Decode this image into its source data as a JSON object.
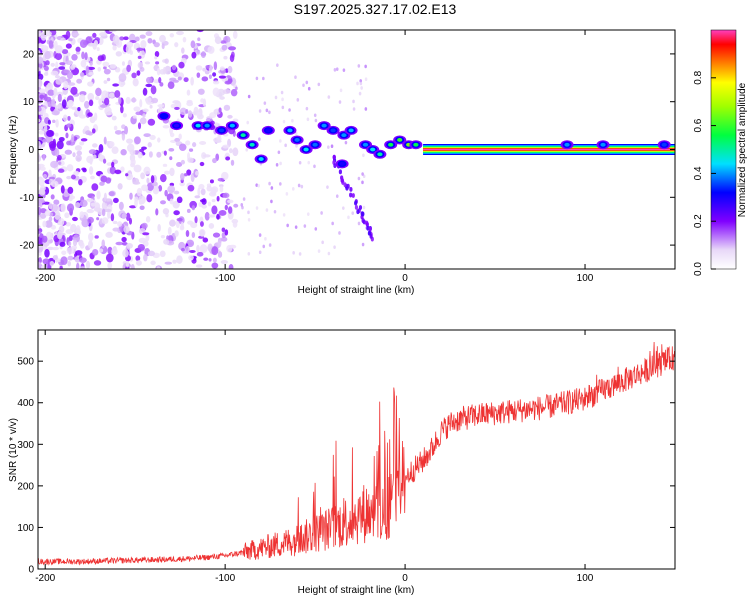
{
  "title": "S197.2025.327.17.02.E13",
  "chart_data": [
    {
      "type": "heatmap",
      "name": "spectrogram",
      "xlabel": "Height of straight line (km)",
      "ylabel": "Frequency (Hz)",
      "xlim": [
        -204,
        150
      ],
      "ylim": [
        -25,
        25
      ],
      "xticks": [
        "-200",
        "-100",
        "0",
        "100"
      ],
      "xtick_values": [
        -200,
        -100,
        0,
        100
      ],
      "yticks": [
        "-20",
        "-10",
        "0",
        "10",
        "20"
      ],
      "ytick_values": [
        -20,
        -10,
        0,
        10,
        20
      ],
      "line_frequency_hz": 0,
      "line_start_km": 10,
      "colorbar": {
        "label": "Normalized spectral amplitude",
        "range": [
          0,
          1
        ],
        "ticks": [
          "0.0",
          "0.2",
          "0.4",
          "0.6",
          "0.8"
        ],
        "tick_values": [
          0,
          0.2,
          0.4,
          0.6,
          0.8
        ]
      },
      "features": [
        {
          "x": -134,
          "y": 7,
          "amp": 0.32
        },
        {
          "x": -127,
          "y": 5,
          "amp": 0.28
        },
        {
          "x": -115,
          "y": 5,
          "amp": 0.45
        },
        {
          "x": -110,
          "y": 5,
          "amp": 0.4
        },
        {
          "x": -102,
          "y": 4,
          "amp": 0.35
        },
        {
          "x": -96,
          "y": 5,
          "amp": 0.42
        },
        {
          "x": -90,
          "y": 3,
          "amp": 0.5
        },
        {
          "x": -85,
          "y": 1,
          "amp": 0.48
        },
        {
          "x": -80,
          "y": -2,
          "amp": 0.45
        },
        {
          "x": -76,
          "y": 4,
          "amp": 0.3
        },
        {
          "x": -64,
          "y": 4,
          "amp": 0.42
        },
        {
          "x": -60,
          "y": 2,
          "amp": 0.38
        },
        {
          "x": -55,
          "y": 0,
          "amp": 0.45
        },
        {
          "x": -50,
          "y": 1,
          "amp": 0.38
        },
        {
          "x": -45,
          "y": 5,
          "amp": 0.4
        },
        {
          "x": -40,
          "y": 4,
          "amp": 0.35
        },
        {
          "x": -34,
          "y": 3,
          "amp": 0.4
        },
        {
          "x": -30,
          "y": 4,
          "amp": 0.42
        },
        {
          "x": -35,
          "y": -3,
          "amp": 0.3
        },
        {
          "x": -22,
          "y": 1,
          "amp": 0.4
        },
        {
          "x": -18,
          "y": 0,
          "amp": 0.45
        },
        {
          "x": -14,
          "y": -1,
          "amp": 0.5
        },
        {
          "x": -8,
          "y": 1,
          "amp": 0.55
        },
        {
          "x": -3,
          "y": 2,
          "amp": 0.6
        },
        {
          "x": 2,
          "y": 1,
          "amp": 0.65
        },
        {
          "x": 6,
          "y": 1,
          "amp": 0.55
        },
        {
          "x": 90,
          "y": 1,
          "amp": 0.4
        },
        {
          "x": 110,
          "y": 1,
          "amp": 0.4
        },
        {
          "x": 144,
          "y": 1,
          "amp": 0.35
        }
      ]
    },
    {
      "type": "line",
      "name": "snr",
      "xlabel": "Height of straight line (km)",
      "ylabel": "SNR (10 * v/v)",
      "xlim": [
        -204,
        150
      ],
      "ylim": [
        0,
        575
      ],
      "xticks": [
        "-200",
        "-100",
        "0",
        "100"
      ],
      "xtick_values": [
        -200,
        -100,
        0,
        100
      ],
      "yticks": [
        "0",
        "100",
        "200",
        "300",
        "400",
        "500"
      ],
      "ytick_values": [
        0,
        100,
        200,
        300,
        400,
        500
      ],
      "color": "#ee3333",
      "series": [
        {
          "name": "SNR",
          "x": [
            -204,
            -180,
            -160,
            -140,
            -120,
            -110,
            -100,
            -90,
            -80,
            -70,
            -60,
            -50,
            -40,
            -30,
            -20,
            -15,
            -10,
            -5,
            0,
            5,
            10,
            15,
            20,
            25,
            30,
            40,
            50,
            60,
            70,
            80,
            90,
            100,
            110,
            120,
            130,
            140,
            150
          ],
          "values": [
            18,
            18,
            20,
            22,
            25,
            28,
            32,
            40,
            50,
            60,
            70,
            85,
            100,
            120,
            140,
            150,
            150,
            170,
            220,
            240,
            260,
            290,
            330,
            350,
            360,
            370,
            375,
            380,
            385,
            390,
            400,
            410,
            430,
            450,
            470,
            490,
            510
          ]
        }
      ]
    }
  ]
}
